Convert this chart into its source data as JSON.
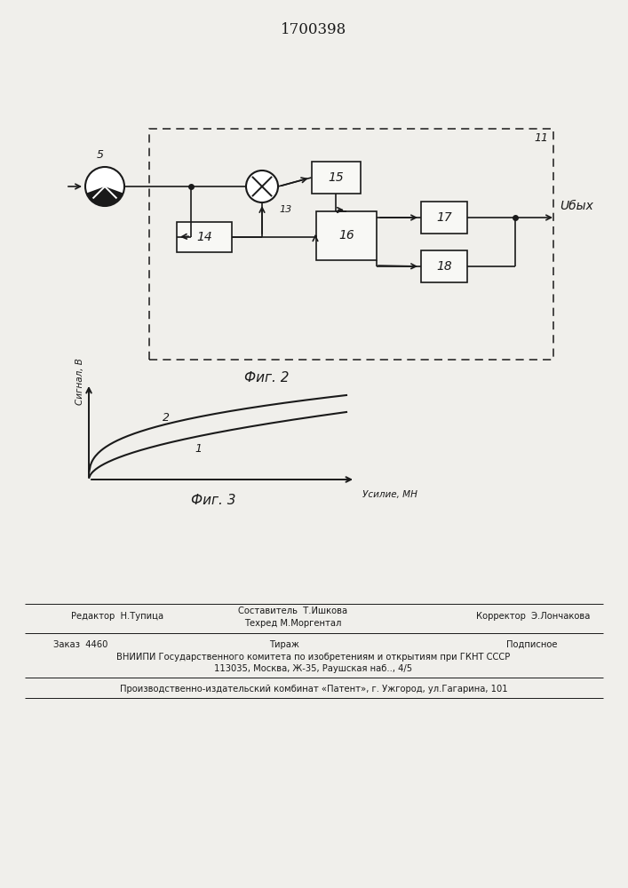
{
  "title": "1700398",
  "fig2_label": "Фиг. 2",
  "fig3_label": "Фиг. 3",
  "uvyx_label": "Uбых",
  "signal_label": "Сигнал, В",
  "force_label": "Усилие, МН",
  "bg_color": "#f0efeb",
  "line_color": "#1a1a1a",
  "box_fill": "#f8f8f5",
  "footer_editor": "Редактор  Н.Тупица",
  "footer_comp": "Составитель  Т.Ишкова",
  "footer_tech": "Техред М.Моргентал",
  "footer_corr": "Корректор  Э.Лончакова",
  "footer_order": "Заказ  4460",
  "footer_tirazh": "Тираж",
  "footer_podp": "Подписное",
  "footer_vniip": "ВНИИПИ Государственного комитета по изобретениям и открытиям при ГКНТ СССР",
  "footer_addr": "113035, Москва, Ж-35, Раушская наб.., 4/5",
  "footer_patent": "Производственно-издательский комбинат «Патент», г. Ужгород, ул.Гагарина, 101"
}
